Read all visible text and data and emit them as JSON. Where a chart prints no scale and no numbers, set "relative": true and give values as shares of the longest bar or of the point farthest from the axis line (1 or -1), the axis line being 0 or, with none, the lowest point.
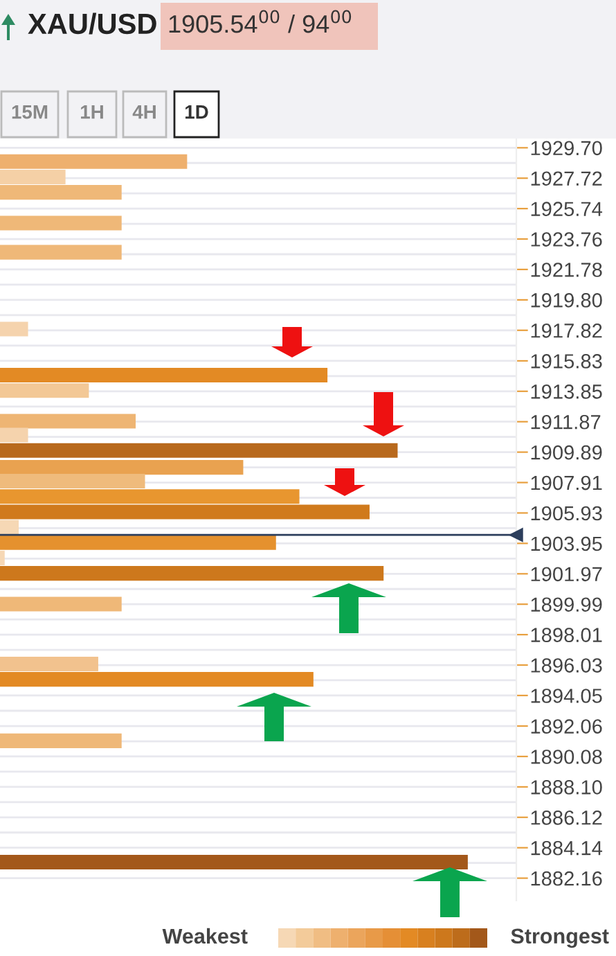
{
  "chart_data": {
    "type": "bar",
    "orientation": "horizontal",
    "relative": true,
    "title": "XAU/USD",
    "subtitle": "1905.54$^{00}$ / 94$^{00}$",
    "x": [
      1928.8,
      1927.8,
      1926.8,
      1924.8,
      1922.9,
      1917.9,
      1914.9,
      1913.9,
      1911.9,
      1911.0,
      1910.0,
      1908.9,
      1908.0,
      1907.0,
      1906.0,
      1905.0,
      1904.0,
      1903.0,
      1902.0,
      1900.0,
      1896.1,
      1895.1,
      1891.1,
      1883.2
    ],
    "values": [
      0.4,
      0.14,
      0.26,
      0.26,
      0.26,
      0.06,
      0.7,
      0.19,
      0.29,
      0.06,
      0.85,
      0.52,
      0.31,
      0.64,
      0.79,
      0.04,
      0.59,
      0.01,
      0.82,
      0.26,
      0.21,
      0.67,
      0.26,
      1.0
    ],
    "colors": [
      "#eeb06e",
      "#f5d0a6",
      "#efb878",
      "#efb878",
      "#efb878",
      "#f5d3ad",
      "#e38a24",
      "#f3c896",
      "#eeb574",
      "#f5d3ad",
      "#b8691d",
      "#e9a250",
      "#efbb7c",
      "#e8962f",
      "#d07a1c",
      "#f6d8b5",
      "#e5912e",
      "#f6d8b5",
      "#cd781c",
      "#efb878",
      "#f2c28e",
      "#e38a24",
      "#efb878",
      "#a3581a"
    ],
    "ylim": [
      1880.7,
      1930.3
    ],
    "yticks": [
      {
        "value": 1929.7,
        "label": "1929.70"
      },
      1927.72,
      1925.74,
      1923.76,
      1921.78,
      {
        "value": 1919.8,
        "label": "1919.80"
      },
      1917.82,
      1915.83,
      1913.85,
      1911.87,
      1909.89,
      1907.91,
      1905.93,
      1903.95,
      1901.97,
      1899.99,
      1898.01,
      1896.03,
      1894.05,
      1892.06,
      1890.08,
      {
        "value": 1888.1,
        "label": "1888.10"
      },
      1886.12,
      1884.14,
      1882.16
    ],
    "grid": "y",
    "ref_lines": [
      {
        "axis": "y",
        "value": 1904.5,
        "color": "#2c3e5c"
      }
    ],
    "annotations": [
      "15M",
      "1H",
      "4H",
      "1D",
      "Weakest",
      "Strongest"
    ]
  }
}
